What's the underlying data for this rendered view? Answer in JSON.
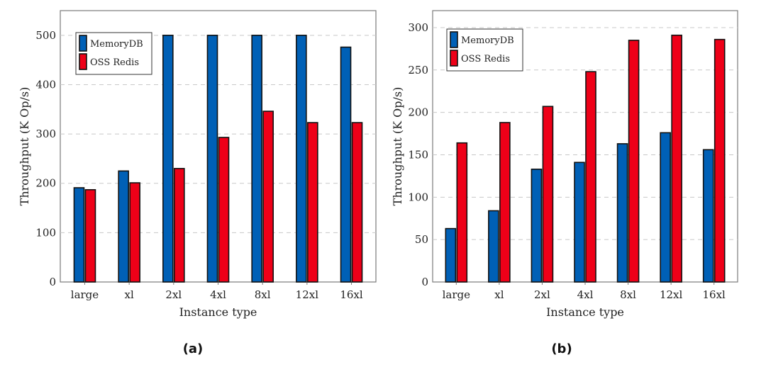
{
  "chart_data": [
    {
      "id": "a",
      "type": "bar",
      "caption": "(a)",
      "title": "",
      "xlabel": "Instance type",
      "ylabel": "Throughput (K Op/s)",
      "categories": [
        "large",
        "xl",
        "2xl",
        "4xl",
        "8xl",
        "12xl",
        "16xl"
      ],
      "series": [
        {
          "name": "MemoryDB",
          "color": "#0060b6",
          "values": [
            191,
            225,
            500,
            500,
            500,
            500,
            476
          ]
        },
        {
          "name": "OSS Redis",
          "color": "#ee0018",
          "values": [
            187,
            201,
            230,
            293,
            346,
            323,
            323
          ]
        }
      ],
      "ylim": [
        0,
        550
      ],
      "yticks": [
        0,
        100,
        200,
        300,
        400,
        500
      ],
      "grid": true,
      "legend_position": "top-left"
    },
    {
      "id": "b",
      "type": "bar",
      "caption": "(b)",
      "title": "",
      "xlabel": "Instance type",
      "ylabel": "Throughput (K Op/s)",
      "categories": [
        "large",
        "xl",
        "2xl",
        "4xl",
        "8xl",
        "12xl",
        "16xl"
      ],
      "series": [
        {
          "name": "MemoryDB",
          "color": "#0060b6",
          "values": [
            63,
            84,
            133,
            141,
            163,
            176,
            156
          ]
        },
        {
          "name": "OSS Redis",
          "color": "#ee0018",
          "values": [
            164,
            188,
            207,
            248,
            285,
            291,
            286
          ]
        }
      ],
      "ylim": [
        0,
        320
      ],
      "yticks": [
        0,
        50,
        100,
        150,
        200,
        250,
        300
      ],
      "grid": true,
      "legend_position": "top-left"
    }
  ]
}
